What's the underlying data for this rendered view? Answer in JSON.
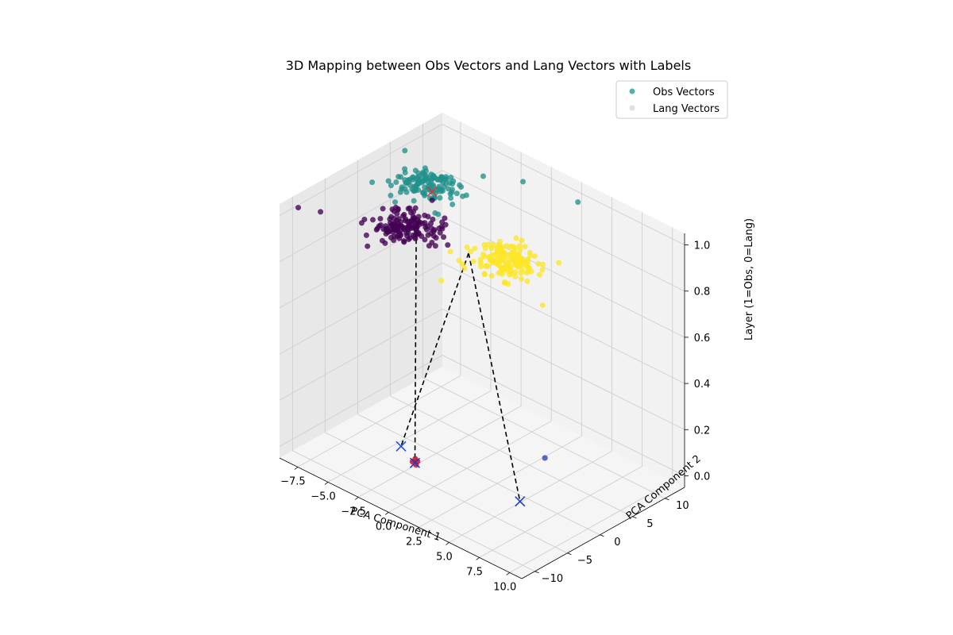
{
  "chart_data": {
    "type": "scatter",
    "title": "3D Mapping between Obs Vectors and Lang Vectors with Labels",
    "xlabel": "PCA Component 1",
    "ylabel": "PCA Component 2",
    "zlabel": "Layer (1=Obs, 0=Lang)",
    "xlim": [
      -9,
      11
    ],
    "ylim": [
      -12,
      13
    ],
    "zlim": [
      -0.05,
      1.05
    ],
    "x_ticks": [
      "−7.5",
      "−5.0",
      "−2.5",
      "0.0",
      "2.5",
      "5.0",
      "7.5",
      "10.0"
    ],
    "x_tick_values": [
      -7.5,
      -5,
      -2.5,
      0,
      2.5,
      5,
      7.5,
      10
    ],
    "y_ticks": [
      "−10",
      "−5",
      "0",
      "5",
      "10"
    ],
    "y_tick_values": [
      -10,
      -5,
      0,
      5,
      10
    ],
    "z_ticks": [
      "0.0",
      "0.2",
      "0.4",
      "0.6",
      "0.8",
      "1.0"
    ],
    "z_tick_values": [
      0,
      0.2,
      0.4,
      0.6,
      0.8,
      1.0
    ],
    "grid": true,
    "legend_position": "top-right",
    "legend": [
      {
        "label": "Obs Vectors",
        "color": "#2a9d8f",
        "alpha": 0.8
      },
      {
        "label": "Lang Vectors",
        "color": "#cccccc",
        "alpha": 0.6
      }
    ],
    "obs_clusters": [
      {
        "label": 0,
        "color": "#440154",
        "center": [
          -2.5,
          -4.5
        ],
        "spread": [
          2.2,
          3.0
        ],
        "count": 150,
        "z": 1.0
      },
      {
        "label": 1,
        "color": "#21918c",
        "center": [
          -5.0,
          3.0
        ],
        "spread": [
          2.0,
          3.0
        ],
        "count": 130,
        "z": 1.0
      },
      {
        "label": 2,
        "color": "#fde725",
        "center": [
          4.5,
          -2.0
        ],
        "spread": [
          2.0,
          3.0
        ],
        "count": 150,
        "z": 1.0
      }
    ],
    "obs_outliers": [
      {
        "x": -8.8,
        "y": -9.5,
        "z": 1.0,
        "label": 0
      },
      {
        "x": -7.5,
        "y": -8.5,
        "z": 1.0,
        "label": 0
      },
      {
        "x": -1.0,
        "y": 10.5,
        "z": 1.0,
        "label": 1
      },
      {
        "x": 3.0,
        "y": 11.5,
        "z": 1.0,
        "label": 1
      },
      {
        "x": 9.5,
        "y": -6.0,
        "z": 1.0,
        "label": 2
      }
    ],
    "lang_points": [
      {
        "x": -1.8,
        "y": -4.2,
        "z": 0.0,
        "color": "#c8102e"
      },
      {
        "x": -2.0,
        "y": -4.6,
        "z": 0.0,
        "color": "#c8102e"
      },
      {
        "x": -1.6,
        "y": -4.8,
        "z": 0.0,
        "color": "#c8102e"
      },
      {
        "x": -2.1,
        "y": -4.0,
        "z": 0.0,
        "color": "#c8102e"
      },
      {
        "x": 3.5,
        "y": 5.5,
        "z": 0.0,
        "color": "#3b4cc0"
      }
    ],
    "lang_markers": [
      {
        "x": -3.7,
        "y": -3.2,
        "z": 0.0,
        "color": "#1f4fff",
        "marker": "x"
      },
      {
        "x": -1.8,
        "y": -4.6,
        "z": 0.0,
        "color": "#1f3fbf",
        "marker": "x"
      },
      {
        "x": 5.8,
        "y": -2.6,
        "z": 0.0,
        "color": "#1f3fbf",
        "marker": "x"
      },
      {
        "x": -4.2,
        "y": 2.5,
        "z": 1.0,
        "color": "#e03030",
        "marker": "x"
      }
    ],
    "mappings": [
      {
        "from": [
          -1.8,
          -4.4,
          1.0
        ],
        "to": [
          -1.8,
          -4.6,
          0.0
        ]
      },
      {
        "from": [
          2.2,
          -3.8,
          1.0
        ],
        "to": [
          -3.7,
          -3.2,
          0.0
        ]
      },
      {
        "from": [
          2.2,
          -3.8,
          1.0
        ],
        "to": [
          5.8,
          -2.6,
          0.0
        ]
      }
    ]
  }
}
